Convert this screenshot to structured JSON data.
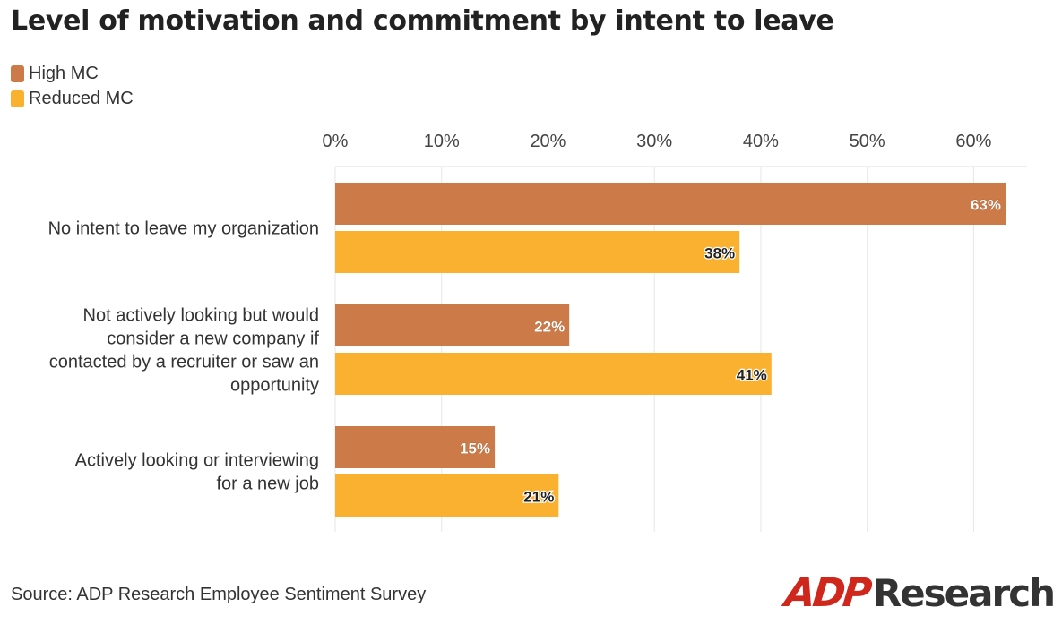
{
  "title": "Level of motivation and commitment by intent to leave",
  "source": "Source: ADP Research Employee Sentiment Survey",
  "logo": {
    "mark": "ADP",
    "word": "Research"
  },
  "colors": {
    "high_mc": "#cc7a48",
    "reduced_mc": "#fbb130",
    "grid": "#e6e6e6",
    "axis_text": "#444444",
    "label_text": "#333333"
  },
  "chart_data": {
    "type": "bar",
    "orientation": "horizontal",
    "title": "Level of motivation and commitment by intent to leave",
    "categories": [
      [
        "No intent to leave my organization"
      ],
      [
        "Not actively looking but would",
        "consider a new company if",
        "contacted by a recruiter or saw an",
        "opportunity"
      ],
      [
        "Actively looking or interviewing",
        "for a new job"
      ]
    ],
    "series": [
      {
        "name": "High MC",
        "values": [
          63,
          22,
          15
        ]
      },
      {
        "name": "Reduced MC",
        "values": [
          38,
          41,
          21
        ]
      }
    ],
    "xlim": [
      0,
      65
    ],
    "xticks": [
      0,
      10,
      20,
      30,
      40,
      50,
      60
    ],
    "tick_suffix": "%",
    "grid": true,
    "legend_position": "top-left",
    "data_labels": true
  }
}
